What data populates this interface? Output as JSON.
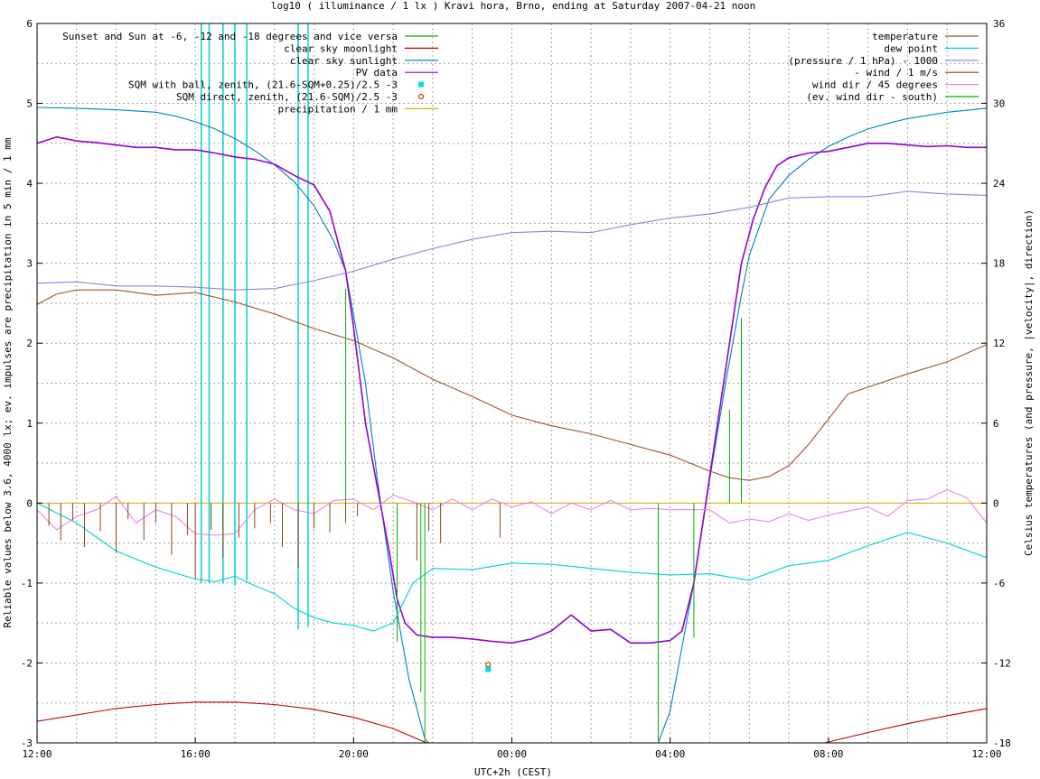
{
  "chart_data": {
    "type": "line",
    "title": "log10 ( illuminance / 1 lx ) Kravi hora, Brno, ending at Saturday 2007-04-21 noon",
    "xlabel": "UTC+2h (CEST)",
    "ylabel": "Reliable values below 3.6, 4000 lx; ev. impulses are precipitation in 5 min / 1 mm",
    "y2label": "Celsius temperatures (and pressure, |velocity|, direction)",
    "xlim_hours": [
      12,
      36
    ],
    "ylim": [
      -3,
      6
    ],
    "y2lim": [
      -18,
      36
    ],
    "x_ticks": [
      "12:00",
      "16:00",
      "20:00",
      "00:00",
      "04:00",
      "08:00",
      "12:00"
    ],
    "y_ticks": [
      "-3",
      "-2",
      "-1",
      "0",
      "1",
      "2",
      "3",
      "4",
      "5",
      "6"
    ],
    "y2_ticks": [
      "-18",
      "-12",
      "-6",
      "0",
      "6",
      "12",
      "18",
      "24",
      "30",
      "36"
    ],
    "grid": true,
    "legend_left": [
      {
        "label": "Sunset and Sun at -6, -12 and -18 degrees and vice versa",
        "color": "#00b000",
        "style": "line"
      },
      {
        "label": "clear sky moonlight",
        "color": "#c00000",
        "style": "line"
      },
      {
        "label": "clear sky sunlight",
        "color": "#0080c0",
        "style": "line"
      },
      {
        "label": "PV data",
        "color": "#9400d3",
        "style": "line"
      },
      {
        "label": "SQM with ball, zenith, (21.6-SQM+0.25)/2.5 -3",
        "color": "#00e0e0",
        "style": "square"
      },
      {
        "label": "SQM direct, zenith, (21.6-SQM)/2.5 -3",
        "color": "#c04000",
        "style": "circle"
      },
      {
        "label": "precipitation / 1 mm",
        "color": "#e0b000",
        "style": "line"
      }
    ],
    "legend_right": [
      {
        "label": "temperature",
        "color": "#a0522d"
      },
      {
        "label": "dew point",
        "color": "#00d0d0"
      },
      {
        "label": "(pressure / 1 hPa) - 1000",
        "color": "#9080e0"
      },
      {
        "label": "- wind / 1 m/s",
        "color": "#8b4513"
      },
      {
        "label": "wind dir / 45 degrees",
        "color": "#ee82ee"
      },
      {
        "label": "(ev. wind dir - south)",
        "color": "#00b000"
      }
    ],
    "sun_events_hours": [
      19.8,
      21.1,
      21.7,
      27.7,
      28.6,
      29.8
    ],
    "sqm_points": [
      {
        "series": "SQM with ball",
        "x": 23.4,
        "y": -2.08
      },
      {
        "series": "SQM direct",
        "x": 23.4,
        "y": -2.02
      }
    ],
    "series": [
      {
        "name": "clear sky moonlight",
        "color": "#c00000",
        "x": [
          12,
          13,
          14,
          15,
          16,
          17,
          18,
          19,
          20,
          21,
          21.85
        ],
        "y": [
          -2.73,
          -2.65,
          -2.57,
          -2.52,
          -2.49,
          -2.49,
          -2.52,
          -2.58,
          -2.68,
          -2.82,
          -3.0
        ]
      },
      {
        "name": "clear sky moonlight",
        "color": "#c00000",
        "x": [
          31.9,
          33,
          34,
          35,
          36
        ],
        "y": [
          -3.0,
          -2.87,
          -2.76,
          -2.66,
          -2.57
        ]
      },
      {
        "name": "clear sky sunlight",
        "color": "#0080c0",
        "x": [
          12,
          13,
          14,
          15,
          15.5,
          16,
          16.5,
          17,
          17.5,
          18,
          18.5,
          19,
          19.5,
          19.8,
          20.0,
          20.3,
          20.6,
          21.0,
          21.4,
          21.8,
          21.9
        ],
        "y": [
          4.95,
          4.94,
          4.92,
          4.89,
          4.84,
          4.77,
          4.68,
          4.56,
          4.41,
          4.23,
          4.02,
          3.72,
          3.28,
          2.9,
          2.35,
          1.5,
          0.3,
          -1.1,
          -2.2,
          -2.95,
          -3.0
        ]
      },
      {
        "name": "clear sky sunlight",
        "color": "#0080c0",
        "x": [
          27.7,
          28.0,
          28.3,
          28.6,
          29.0,
          29.4,
          29.8,
          30.0,
          30.5,
          31,
          31.5,
          32,
          32.5,
          33,
          33.5,
          34,
          35,
          36
        ],
        "y": [
          -3.0,
          -2.6,
          -1.8,
          -1.0,
          0.3,
          1.5,
          2.6,
          3.1,
          3.8,
          4.1,
          4.3,
          4.46,
          4.58,
          4.68,
          4.75,
          4.81,
          4.89,
          4.94
        ]
      },
      {
        "name": "PV data",
        "color": "#9400d3",
        "x": [
          12,
          12.5,
          13,
          13.5,
          14,
          14.5,
          15,
          15.5,
          16,
          16.5,
          17,
          17.5,
          18,
          18.5,
          19,
          19.4,
          19.8,
          20.0,
          20.3,
          20.6,
          20.9,
          21.1,
          21.3,
          21.6,
          22,
          22.5,
          23,
          23.5,
          24,
          24.5,
          25,
          25.5,
          26,
          26.5,
          27,
          27.5,
          28,
          28.3,
          28.6,
          28.9,
          29.2,
          29.5,
          29.8,
          30.1,
          30.4,
          30.7,
          31,
          31.5,
          32,
          32.5,
          33,
          33.5,
          34,
          34.5,
          35,
          35.5,
          36
        ],
        "y": [
          4.5,
          4.58,
          4.53,
          4.51,
          4.48,
          4.45,
          4.45,
          4.42,
          4.42,
          4.38,
          4.33,
          4.3,
          4.24,
          4.1,
          3.98,
          3.65,
          2.9,
          2.2,
          1.0,
          0.2,
          -0.6,
          -1.2,
          -1.5,
          -1.65,
          -1.68,
          -1.68,
          -1.7,
          -1.73,
          -1.75,
          -1.7,
          -1.6,
          -1.4,
          -1.6,
          -1.58,
          -1.75,
          -1.75,
          -1.72,
          -1.6,
          -1.0,
          0.0,
          1.0,
          2.0,
          3.0,
          3.55,
          3.95,
          4.22,
          4.32,
          4.38,
          4.4,
          4.45,
          4.5,
          4.5,
          4.48,
          4.46,
          4.47,
          4.45,
          4.45
        ]
      },
      {
        "name": "temperature",
        "color": "#a0522d",
        "axis": "y2",
        "x": [
          12,
          12.5,
          13,
          14,
          15,
          16,
          17,
          18,
          19,
          20,
          21,
          22,
          23,
          24,
          25,
          26,
          27,
          28,
          29,
          29.5,
          30,
          30.5,
          31,
          31.5,
          32,
          32.5,
          33,
          34,
          35,
          36
        ],
        "y": [
          14.9,
          15.7,
          16.0,
          16.0,
          15.6,
          15.8,
          15.1,
          14.2,
          13.1,
          12.2,
          10.9,
          9.3,
          8.0,
          6.6,
          5.8,
          5.2,
          4.4,
          3.6,
          2.4,
          1.9,
          1.7,
          2.0,
          2.8,
          4.4,
          6.3,
          8.2,
          8.7,
          9.7,
          10.6,
          11.9
        ]
      },
      {
        "name": "dew point",
        "color": "#00d0d0",
        "axis": "y2",
        "x": [
          12,
          13,
          14,
          15,
          16,
          16.5,
          17,
          17.5,
          18,
          18.5,
          19,
          19.5,
          20,
          20.5,
          21,
          21.5,
          22,
          23,
          24,
          25,
          26,
          27,
          28,
          29,
          30,
          31,
          32,
          33,
          34,
          35,
          36
        ],
        "y": [
          0.0,
          -1.5,
          -3.6,
          -4.8,
          -5.7,
          -5.9,
          -5.5,
          -6.2,
          -6.8,
          -7.9,
          -8.6,
          -9.0,
          -9.2,
          -9.6,
          -9.0,
          -6.0,
          -4.9,
          -5.0,
          -4.5,
          -4.6,
          -4.9,
          -5.2,
          -5.4,
          -5.3,
          -5.8,
          -4.7,
          -4.3,
          -3.2,
          -2.2,
          -3.0,
          -4.1
        ]
      },
      {
        "name": "(pressure / 1 hPa) - 1000",
        "color": "#9080e0",
        "axis": "y2",
        "x": [
          12,
          13,
          14,
          15,
          16,
          17,
          18,
          19,
          20,
          21,
          22,
          23,
          24,
          25,
          26,
          27,
          28,
          29,
          30,
          31,
          32,
          33,
          34,
          35,
          36
        ],
        "y": [
          16.5,
          16.6,
          16.3,
          16.3,
          16.2,
          16.0,
          16.1,
          16.7,
          17.4,
          18.3,
          19.1,
          19.8,
          20.3,
          20.4,
          20.3,
          20.9,
          21.4,
          21.7,
          22.2,
          22.9,
          23.0,
          23.0,
          23.4,
          23.2,
          23.1
        ]
      },
      {
        "name": "wind dir / 45 degrees",
        "color": "#ee82ee",
        "axis": "y2",
        "x": [
          12,
          12.5,
          13,
          13.5,
          14,
          14.5,
          15,
          15.5,
          16,
          16.5,
          17,
          17.5,
          18,
          18.5,
          19,
          19.5,
          20,
          20.5,
          21,
          21.5,
          22,
          22.5,
          23,
          23.5,
          24,
          24.5,
          25,
          25.5,
          26,
          26.5,
          27,
          27.5,
          28,
          28.5,
          29,
          29.5,
          30,
          30.5,
          31,
          31.5,
          32,
          32.5,
          33,
          33.5,
          34,
          34.5,
          35,
          35.5,
          36
        ],
        "y": [
          -0.5,
          -2.0,
          -1.0,
          -0.5,
          0.5,
          -1.5,
          -0.5,
          -1.0,
          -2.3,
          -2.4,
          -2.3,
          -0.5,
          0.3,
          -0.5,
          -0.8,
          0.2,
          0.3,
          -0.5,
          0.6,
          0.1,
          -0.5,
          0.3,
          -0.5,
          0.3,
          -0.3,
          0.1,
          -0.8,
          0.0,
          -0.5,
          0.2,
          -0.5,
          -0.4,
          -0.5,
          -0.5,
          -0.5,
          -1.5,
          -1.2,
          -1.4,
          -0.8,
          -1.3,
          -0.9,
          -0.6,
          -0.3,
          -1.0,
          0.2,
          0.3,
          1.0,
          0.4,
          -1.5
        ]
      }
    ],
    "wind_impulses": {
      "name": "- wind / 1 m/s",
      "color": "#8b4513",
      "x": [
        12.3,
        12.6,
        12.9,
        13.2,
        13.6,
        14.0,
        14.3,
        14.7,
        15.0,
        15.4,
        15.8,
        16.0,
        16.4,
        16.7,
        17.1,
        17.5,
        17.9,
        18.2,
        18.6,
        19.0,
        19.4,
        19.8,
        20.1,
        21.6,
        21.9,
        22.2,
        23.7
      ],
      "y": [
        -1.7,
        -2.8,
        -1.3,
        -3.3,
        -2.1,
        -3.7,
        -1.2,
        -2.8,
        -1.5,
        -3.9,
        -2.4,
        -5.7,
        -2.0,
        -4.1,
        -2.6,
        -1.9,
        -1.5,
        -3.3,
        -4.9,
        -1.9,
        -2.2,
        -1.5,
        -1.0,
        -4.3,
        -2.1,
        -3.0,
        -2.6
      ]
    },
    "sqm_spikes": {
      "color": "#00d0d0",
      "x": [
        16.15,
        16.35,
        16.7,
        17.0,
        17.3,
        18.6,
        18.85
      ],
      "y_base": [
        -6.0,
        -6.0,
        -6.0,
        -6.2,
        -5.8,
        -9.5,
        -9.3
      ],
      "y_top": [
        36,
        36,
        36,
        36,
        36,
        36,
        36
      ]
    },
    "green_impulses": {
      "name": "(ev. wind dir - south)",
      "color": "#00b000",
      "x": [
        19.8,
        21.1,
        21.7,
        21.8,
        27.7,
        28.6,
        29.5,
        29.8
      ],
      "y": [
        16.1,
        -10.4,
        -14.2,
        -17.9,
        -17.9,
        -10.1,
        7.0,
        13.9
      ]
    },
    "precipitation": {
      "name": "precipitation / 1 mm",
      "color": "#e0b000",
      "value": 0
    }
  }
}
